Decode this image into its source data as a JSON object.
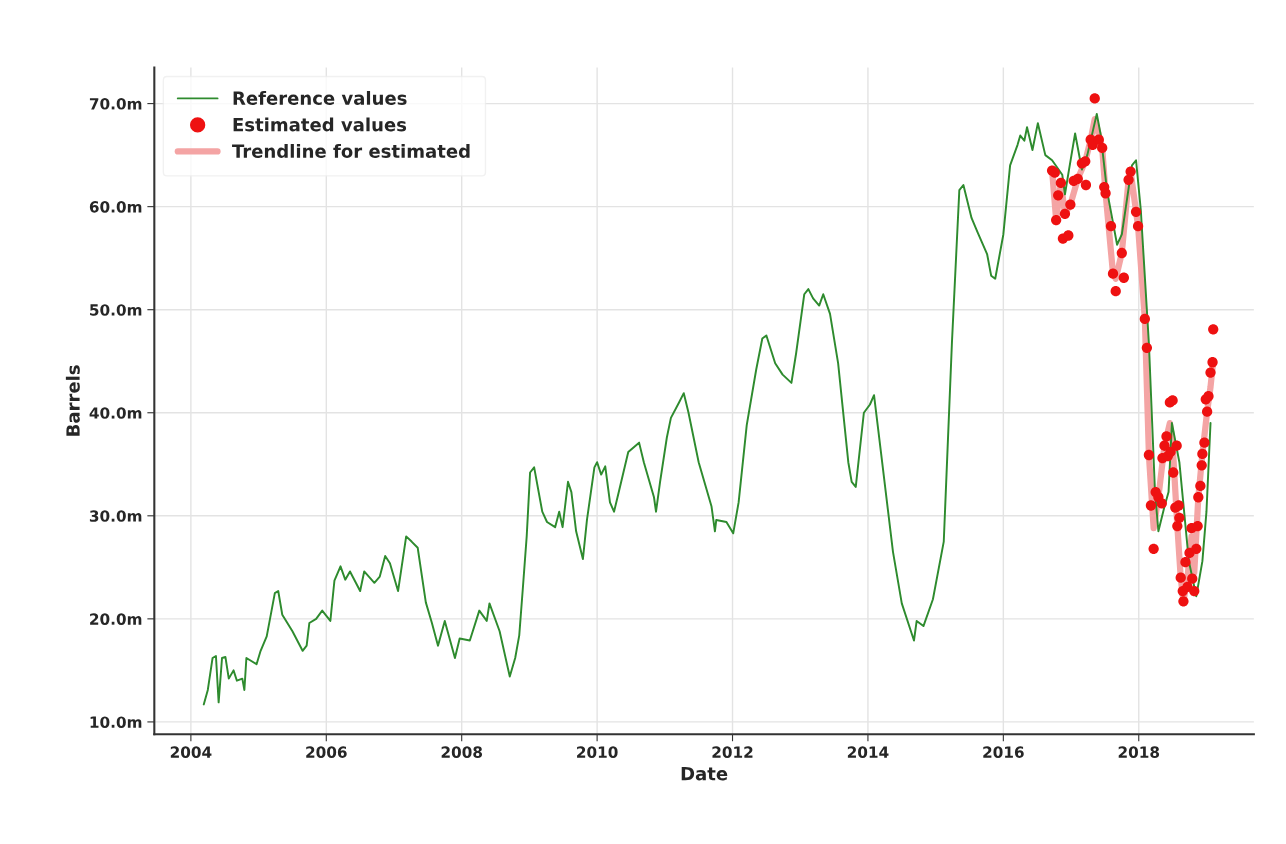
{
  "chart_data": {
    "type": "line",
    "xlabel": "Date",
    "ylabel": "Barrels",
    "xlim": [
      2003.46,
      2019.7
    ],
    "ylim": [
      8.8,
      73.5
    ],
    "xticks": [
      2004,
      2006,
      2008,
      2010,
      2012,
      2014,
      2016,
      2018
    ],
    "yticks": [
      {
        "value": 10,
        "label": "10.0m"
      },
      {
        "value": 20,
        "label": "20.0m"
      },
      {
        "value": 30,
        "label": "30.0m"
      },
      {
        "value": 40,
        "label": "40.0m"
      },
      {
        "value": 50,
        "label": "50.0m"
      },
      {
        "value": 60,
        "label": "60.0m"
      },
      {
        "value": 70,
        "label": "70.0m"
      }
    ],
    "grid": true,
    "legend": "top left",
    "series": [
      {
        "name": "Reference values",
        "color": "#2e8b2e",
        "x": [
          2004.19,
          2004.25,
          2004.32,
          2004.37,
          2004.41,
          2004.46,
          2004.51,
          2004.56,
          2004.63,
          2004.68,
          2004.76,
          2004.79,
          2004.82,
          2004.97,
          2005.03,
          2005.12,
          2005.24,
          2005.29,
          2005.35,
          2005.5,
          2005.65,
          2005.71,
          2005.75,
          2005.85,
          2005.94,
          2006.06,
          2006.12,
          2006.21,
          2006.28,
          2006.35,
          2006.5,
          2006.56,
          2006.71,
          2006.79,
          2006.87,
          2006.94,
          2007.06,
          2007.18,
          2007.26,
          2007.35,
          2007.47,
          2007.56,
          2007.65,
          2007.75,
          2007.9,
          2007.97,
          2008.12,
          2008.26,
          2008.37,
          2008.41,
          2008.56,
          2008.71,
          2008.79,
          2008.85,
          2008.9,
          2008.96,
          2009.01,
          2009.07,
          2009.19,
          2009.26,
          2009.38,
          2009.44,
          2009.49,
          2009.57,
          2009.62,
          2009.69,
          2009.79,
          2009.85,
          2009.96,
          2010.0,
          2010.06,
          2010.12,
          2010.19,
          2010.25,
          2010.32,
          2010.46,
          2010.62,
          2010.69,
          2010.84,
          2010.87,
          2010.93,
          2011.03,
          2011.09,
          2011.21,
          2011.28,
          2011.35,
          2011.5,
          2011.69,
          2011.74,
          2011.76,
          2011.91,
          2012.01,
          2012.09,
          2012.21,
          2012.35,
          2012.44,
          2012.5,
          2012.63,
          2012.74,
          2012.87,
          2012.94,
          2013.06,
          2013.12,
          2013.19,
          2013.28,
          2013.34,
          2013.44,
          2013.56,
          2013.71,
          2013.76,
          2013.82,
          2013.94,
          2014.03,
          2014.09,
          2014.21,
          2014.37,
          2014.5,
          2014.68,
          2014.72,
          2014.82,
          2014.96,
          2015.12,
          2015.24,
          2015.35,
          2015.41,
          2015.53,
          2015.62,
          2015.76,
          2015.82,
          2015.88,
          2016.0,
          2016.1,
          2016.21,
          2016.25,
          2016.31,
          2016.35,
          2016.43,
          2016.51,
          2016.62,
          2016.72,
          2016.87,
          2016.91,
          2016.97,
          2017.06,
          2017.16,
          2017.24,
          2017.38,
          2017.44,
          2017.53,
          2017.68,
          2017.75,
          2017.9,
          2017.96,
          2018.03,
          2018.15,
          2018.24,
          2018.29,
          2018.38,
          2018.44,
          2018.49,
          2018.6,
          2018.74,
          2018.85,
          2018.94,
          2019.0,
          2019.06
        ],
        "values": [
          11.7,
          13.1,
          16.2,
          16.4,
          11.9,
          16.2,
          16.3,
          14.2,
          15.0,
          14.0,
          14.2,
          13.1,
          16.2,
          15.6,
          16.9,
          18.3,
          22.5,
          22.7,
          20.4,
          18.8,
          16.9,
          17.4,
          19.6,
          20.0,
          20.8,
          19.8,
          23.7,
          25.1,
          23.8,
          24.6,
          22.7,
          24.6,
          23.5,
          24.1,
          26.1,
          25.4,
          22.7,
          28.0,
          27.5,
          26.9,
          21.6,
          19.6,
          17.4,
          19.8,
          16.2,
          18.1,
          17.9,
          20.8,
          19.8,
          21.5,
          18.8,
          14.4,
          16.2,
          18.4,
          22.7,
          28.0,
          34.2,
          34.7,
          30.4,
          29.4,
          28.9,
          30.4,
          28.9,
          33.3,
          32.3,
          28.5,
          25.8,
          29.6,
          34.7,
          35.2,
          34.0,
          34.8,
          31.3,
          30.4,
          32.3,
          36.2,
          37.1,
          35.2,
          31.8,
          30.4,
          33.3,
          37.6,
          39.5,
          41.0,
          41.9,
          40.0,
          35.2,
          30.9,
          28.5,
          29.6,
          29.4,
          28.3,
          31.3,
          38.8,
          44.2,
          47.2,
          47.5,
          44.8,
          43.7,
          42.9,
          45.8,
          51.5,
          52.0,
          51.1,
          50.4,
          51.5,
          49.6,
          44.8,
          35.2,
          33.3,
          32.8,
          40.0,
          40.8,
          41.7,
          35.2,
          26.5,
          21.5,
          17.9,
          19.8,
          19.3,
          21.9,
          27.5,
          46.7,
          61.6,
          62.1,
          58.9,
          57.5,
          55.4,
          53.3,
          53.0,
          57.3,
          64.0,
          66.0,
          66.9,
          66.4,
          67.7,
          65.5,
          68.1,
          65.0,
          64.5,
          63.1,
          61.2,
          63.6,
          67.1,
          63.6,
          65.0,
          69.0,
          66.9,
          61.6,
          56.3,
          57.3,
          64.0,
          64.5,
          59.7,
          46.7,
          32.3,
          28.5,
          30.9,
          32.3,
          39.0,
          35.2,
          25.6,
          22.2,
          25.6,
          30.4,
          39.0
        ]
      },
      {
        "name": "Estimated values",
        "type": "scatter",
        "color": "#ee1111",
        "marker": "circle",
        "x": [
          2016.72,
          2016.76,
          2016.78,
          2016.81,
          2016.85,
          2016.88,
          2016.91,
          2016.96,
          2016.99,
          2017.04,
          2017.1,
          2017.16,
          2017.21,
          2017.22,
          2017.29,
          2017.32,
          2017.35,
          2017.41,
          2017.46,
          2017.49,
          2017.51,
          2017.59,
          2017.62,
          2017.66,
          2017.75,
          2017.78,
          2017.85,
          2017.88,
          2017.96,
          2017.99,
          2018.09,
          2018.12,
          2018.15,
          2018.18,
          2018.22,
          2018.25,
          2018.29,
          2018.34,
          2018.35,
          2018.38,
          2018.41,
          2018.43,
          2018.46,
          2018.47,
          2018.5,
          2018.51,
          2018.54,
          2018.56,
          2018.57,
          2018.59,
          2018.6,
          2018.62,
          2018.65,
          2018.66,
          2018.69,
          2018.72,
          2018.75,
          2018.78,
          2018.79,
          2018.82,
          2018.85,
          2018.87,
          2018.88,
          2018.91,
          2018.93,
          2018.94,
          2018.97,
          2018.99,
          2019.01,
          2019.03,
          2019.06,
          2019.09,
          2019.1
        ],
        "values": [
          63.5,
          63.3,
          58.7,
          61.1,
          62.3,
          56.9,
          59.3,
          57.2,
          60.2,
          62.5,
          62.7,
          64.2,
          64.4,
          62.1,
          66.5,
          66.0,
          70.5,
          66.5,
          65.7,
          61.9,
          61.3,
          58.1,
          53.5,
          51.8,
          55.5,
          53.1,
          62.6,
          63.4,
          59.5,
          58.1,
          49.1,
          46.3,
          35.9,
          31.0,
          26.8,
          32.3,
          31.8,
          31.2,
          35.6,
          36.8,
          37.7,
          35.8,
          41.0,
          36.2,
          41.2,
          34.2,
          30.8,
          36.8,
          29.0,
          31.0,
          29.8,
          24.0,
          22.7,
          21.7,
          25.5,
          23.1,
          26.4,
          28.8,
          23.9,
          22.7,
          26.8,
          29.0,
          31.8,
          32.9,
          34.9,
          36.0,
          37.1,
          41.3,
          40.1,
          41.6,
          43.9,
          44.9,
          48.1
        ]
      },
      {
        "name": "Trendline for estimated",
        "color": "#f4a4a4",
        "x": [
          2016.72,
          2016.78,
          2016.85,
          2016.91,
          2016.99,
          2017.1,
          2017.21,
          2017.29,
          2017.35,
          2017.46,
          2017.51,
          2017.62,
          2017.66,
          2017.75,
          2017.85,
          2017.88,
          2017.99,
          2018.09,
          2018.15,
          2018.22,
          2018.29,
          2018.38,
          2018.46,
          2018.5,
          2018.57,
          2018.62,
          2018.66,
          2018.72,
          2018.78,
          2018.82,
          2018.88,
          2018.94,
          2019.01,
          2019.06,
          2019.1
        ],
        "values": [
          63.5,
          58.7,
          62.3,
          59.3,
          60.2,
          62.7,
          64.4,
          66.5,
          68.5,
          65.7,
          61.3,
          53.5,
          53.0,
          55.5,
          62.6,
          63.4,
          58.1,
          49.1,
          35.9,
          28.8,
          31.8,
          36.8,
          39.0,
          37.0,
          29.0,
          24.0,
          21.7,
          24.0,
          28.0,
          24.5,
          31.8,
          36.0,
          40.1,
          42.5,
          45.0
        ]
      }
    ]
  }
}
